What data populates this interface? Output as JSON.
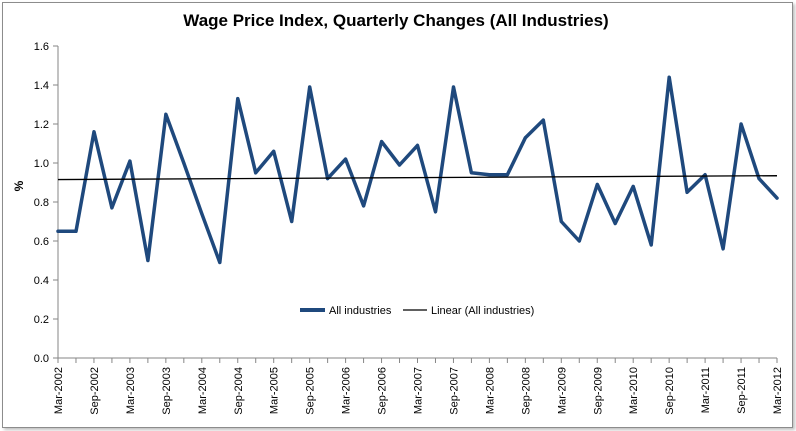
{
  "chart_data": {
    "type": "line",
    "title": "Wage Price Index, Quarterly Changes (All Industries)",
    "ylabel": "%",
    "xlabel": "",
    "ylim": [
      0,
      1.6
    ],
    "yticks": [
      "0.0",
      "0.2",
      "0.4",
      "0.6",
      "0.8",
      "1.0",
      "1.2",
      "1.4",
      "1.6"
    ],
    "categories": [
      "Mar-2002",
      "Jun-2002",
      "Sep-2002",
      "Dec-2002",
      "Mar-2003",
      "Jun-2003",
      "Sep-2003",
      "Dec-2003",
      "Mar-2004",
      "Jun-2004",
      "Sep-2004",
      "Dec-2004",
      "Mar-2005",
      "Jun-2005",
      "Sep-2005",
      "Dec-2005",
      "Mar-2006",
      "Jun-2006",
      "Sep-2006",
      "Dec-2006",
      "Mar-2007",
      "Jun-2007",
      "Sep-2007",
      "Dec-2007",
      "Mar-2008",
      "Jun-2008",
      "Sep-2008",
      "Dec-2008",
      "Mar-2009",
      "Jun-2009",
      "Sep-2009",
      "Dec-2009",
      "Mar-2010",
      "Jun-2010",
      "Sep-2010",
      "Dec-2010",
      "Mar-2011",
      "Jun-2011",
      "Sep-2011",
      "Dec-2011",
      "Mar-2012"
    ],
    "visible_tick_labels": [
      "Mar-2002",
      "Sep-2002",
      "Mar-2003",
      "Sep-2003",
      "Mar-2004",
      "Sep-2004",
      "Mar-2005",
      "Sep-2005",
      "Mar-2006",
      "Sep-2006",
      "Mar-2007",
      "Sep-2007",
      "Mar-2008",
      "Sep-2008",
      "Mar-2009",
      "Sep-2009",
      "Mar-2010",
      "Sep-2010",
      "Mar-2011",
      "Sep-2011",
      "Mar-2012"
    ],
    "series": [
      {
        "name": "All industries",
        "color": "#1f497d",
        "values": [
          0.65,
          0.65,
          1.16,
          0.77,
          1.01,
          0.5,
          1.25,
          1.0,
          0.74,
          0.49,
          1.33,
          0.95,
          1.06,
          0.7,
          1.39,
          0.92,
          1.02,
          0.78,
          1.11,
          0.99,
          1.09,
          0.75,
          1.39,
          0.95,
          0.94,
          0.94,
          1.13,
          1.22,
          0.7,
          0.6,
          0.89,
          0.69,
          0.88,
          0.58,
          1.44,
          0.85,
          0.94,
          0.56,
          1.2,
          0.92,
          0.82
        ]
      },
      {
        "name": "Linear (All industries)",
        "color": "#000000",
        "type": "trendline",
        "start": 0.915,
        "end": 0.935
      }
    ],
    "legend_position": "bottom-center",
    "grid": false
  }
}
